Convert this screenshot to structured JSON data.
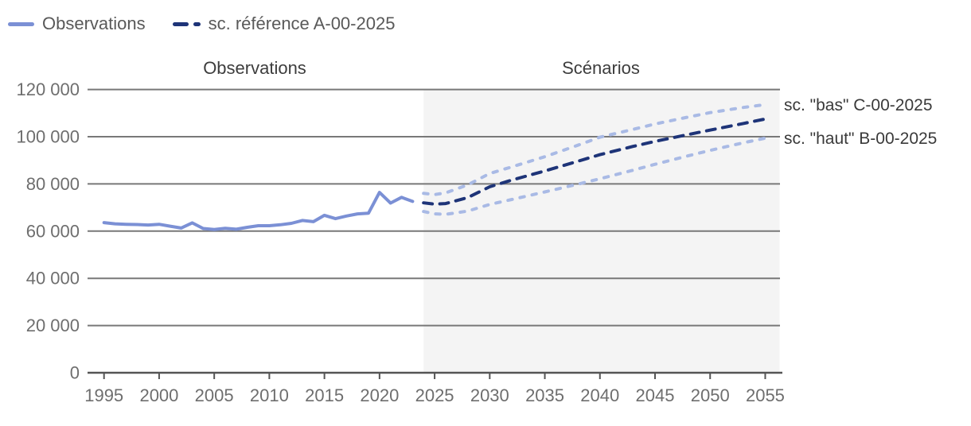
{
  "page": {
    "background": "#ffffff"
  },
  "legend": {
    "position": "top-left",
    "items": [
      {
        "label": "Observations",
        "marker": "solid-line",
        "color": "#7b90d5"
      },
      {
        "label": "sc. référence A-00-2025",
        "marker": "dashed-line",
        "color": "#1e3478"
      }
    ]
  },
  "section_titles": {
    "left": "Observations",
    "right": "Scénarios"
  },
  "annotations": {
    "sc_bas": {
      "label": "sc. \"bas\" C-00-2025"
    },
    "sc_haut": {
      "label": "sc. \"haut\" B-00-2025"
    }
  },
  "chart_data": {
    "type": "line",
    "title": "",
    "xlabel": "",
    "ylabel": "",
    "xlim": [
      1993.5,
      2056.5
    ],
    "ylim": [
      0,
      120000
    ],
    "x_ticks": [
      1995,
      2000,
      2005,
      2010,
      2015,
      2020,
      2025,
      2030,
      2035,
      2040,
      2045,
      2050,
      2055
    ],
    "y_ticks": [
      0,
      20000,
      40000,
      60000,
      80000,
      100000,
      120000
    ],
    "y_tick_labels": [
      "0",
      "20 000",
      "40 000",
      "60 000",
      "80 000",
      "100 000",
      "120 000"
    ],
    "grid": "horizontal",
    "grid_color": "#787878",
    "axis_color": "#555555",
    "scenario_region": {
      "start_year": 2024,
      "end_year": 2056.3,
      "fill": "#f4f4f4"
    },
    "series": [
      {
        "name": "Observations",
        "style": "solid",
        "color": "#7b90d5",
        "points": [
          [
            1995,
            63600
          ],
          [
            1996,
            63100
          ],
          [
            1997,
            62900
          ],
          [
            1998,
            62800
          ],
          [
            1999,
            62600
          ],
          [
            2000,
            62900
          ],
          [
            2001,
            62100
          ],
          [
            2002,
            61300
          ],
          [
            2003,
            63500
          ],
          [
            2004,
            61100
          ],
          [
            2005,
            60700
          ],
          [
            2006,
            61200
          ],
          [
            2007,
            60800
          ],
          [
            2008,
            61600
          ],
          [
            2009,
            62300
          ],
          [
            2010,
            62300
          ],
          [
            2011,
            62700
          ],
          [
            2012,
            63300
          ],
          [
            2013,
            64500
          ],
          [
            2014,
            64000
          ],
          [
            2015,
            66700
          ],
          [
            2016,
            65300
          ],
          [
            2017,
            66400
          ],
          [
            2018,
            67300
          ],
          [
            2019,
            67600
          ],
          [
            2020,
            76400
          ],
          [
            2021,
            71900
          ],
          [
            2022,
            74300
          ],
          [
            2023,
            72600
          ]
        ]
      },
      {
        "name": "sc. référence A-00-2025",
        "style": "dashed",
        "color": "#1e3478",
        "dash": "11 9.5",
        "points": [
          [
            2024,
            72000
          ],
          [
            2025,
            71400
          ],
          [
            2026,
            71700
          ],
          [
            2028,
            74200
          ],
          [
            2030,
            78800
          ],
          [
            2032,
            81600
          ],
          [
            2035,
            85500
          ],
          [
            2038,
            89600
          ],
          [
            2040,
            92400
          ],
          [
            2043,
            95900
          ],
          [
            2045,
            98000
          ],
          [
            2048,
            100900
          ],
          [
            2050,
            102800
          ],
          [
            2053,
            105600
          ],
          [
            2055,
            107500
          ]
        ]
      },
      {
        "name": "sc. \"bas\" C-00-2025",
        "style": "dashed",
        "color": "#a9bae5",
        "dash": "5.5 10",
        "points": [
          [
            2024,
            76000
          ],
          [
            2025,
            75500
          ],
          [
            2026,
            76200
          ],
          [
            2028,
            79600
          ],
          [
            2030,
            84400
          ],
          [
            2032,
            87200
          ],
          [
            2035,
            91500
          ],
          [
            2038,
            96400
          ],
          [
            2040,
            99800
          ],
          [
            2043,
            103100
          ],
          [
            2045,
            105400
          ],
          [
            2048,
            108300
          ],
          [
            2050,
            110200
          ],
          [
            2053,
            112400
          ],
          [
            2055,
            113600
          ]
        ]
      },
      {
        "name": "sc. \"haut\" B-00-2025",
        "style": "dashed",
        "color": "#a9bae5",
        "dash": "5.5 10",
        "points": [
          [
            2024,
            68300
          ],
          [
            2025,
            67300
          ],
          [
            2026,
            67100
          ],
          [
            2028,
            68500
          ],
          [
            2030,
            71300
          ],
          [
            2032,
            73400
          ],
          [
            2035,
            76600
          ],
          [
            2038,
            79900
          ],
          [
            2040,
            82200
          ],
          [
            2043,
            85800
          ],
          [
            2045,
            88300
          ],
          [
            2048,
            91900
          ],
          [
            2050,
            94200
          ],
          [
            2053,
            97400
          ],
          [
            2055,
            99400
          ]
        ]
      }
    ]
  }
}
